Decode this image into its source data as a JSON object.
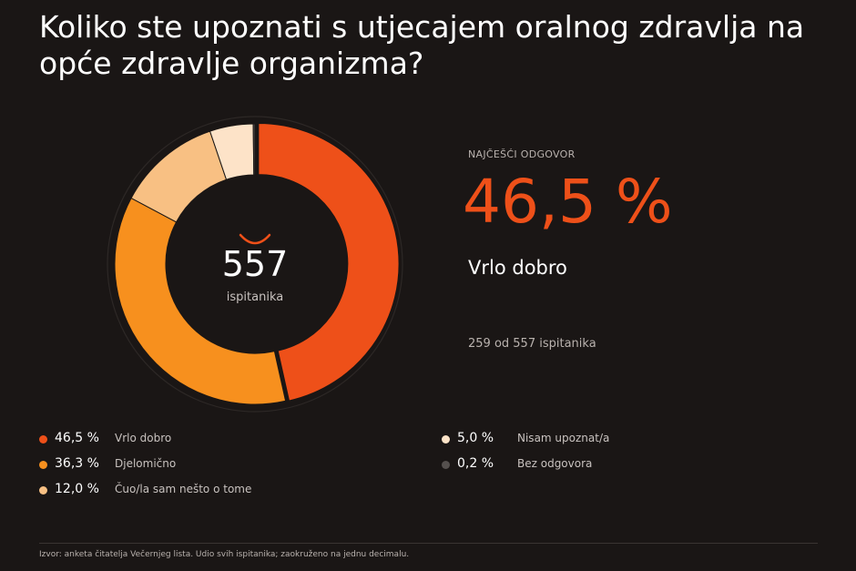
{
  "title": "Koliko ste upoznati s utjecajem oralnog zdravlja na opće zdravlje organizma?",
  "center": {
    "count": "557",
    "label": "ispitanika"
  },
  "highlight": {
    "kicker": "NAJČEŠĆI ODGOVOR",
    "value": "46,5 %",
    "answer": "Vrlo dobro",
    "count_text": "259 od 557 ispitanika"
  },
  "source": "Izvor: anketa čitatelja Večernjeg lista. Udio svih ispitanika; zaokruženo na jednu decimalu.",
  "chart_data": {
    "type": "pie",
    "variant": "donut",
    "title": "Koliko ste upoznati s utjecajem oralnog zdravlja na opće zdravlje organizma?",
    "total": 557,
    "slices": [
      {
        "label": "Vrlo dobro",
        "value": 46.5,
        "pct_label": "46,5 %",
        "color": "#ee5019"
      },
      {
        "label": "Djelomično",
        "value": 36.3,
        "pct_label": "36,3 %",
        "color": "#f7901e"
      },
      {
        "label": "Čuo/la sam nešto o tome",
        "value": 12.0,
        "pct_label": "12,0 %",
        "color": "#f8c083"
      },
      {
        "label": "Nisam upoznat/a",
        "value": 5.0,
        "pct_label": "5,0 %",
        "color": "#fde3c8"
      },
      {
        "label": "Bez odgovora",
        "value": 0.2,
        "pct_label": "0,2 %",
        "color": "#55504e"
      }
    ]
  }
}
